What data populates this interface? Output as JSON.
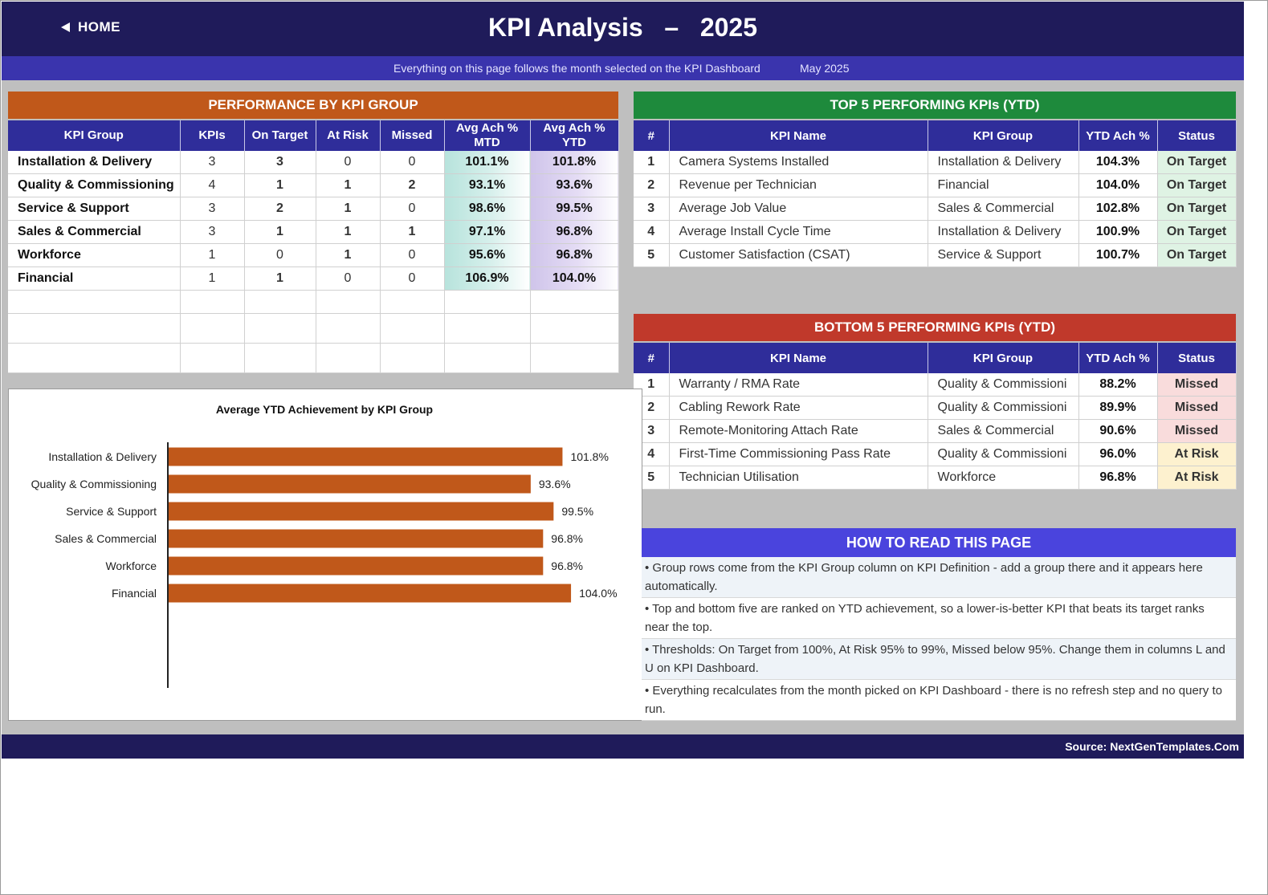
{
  "header": {
    "home_label": "HOME",
    "title": "KPI Analysis   –   2025",
    "subtitle": "Everything on this page follows the month selected on the KPI Dashboard",
    "month": "May 2025"
  },
  "colors": {
    "navy": "#1f1b5a",
    "subbar": "#3a34ad",
    "table_header": "#2f2d9a",
    "orange": "#c0581a",
    "green": "#1e8a3c",
    "red": "#c0392b",
    "how_header": "#4a44dd",
    "bar": "#c0581a"
  },
  "performance": {
    "title": "PERFORMANCE BY KPI GROUP",
    "columns": [
      "KPI Group",
      "KPIs",
      "On Target",
      "At Risk",
      "Missed",
      "Avg Ach % MTD",
      "Avg Ach % YTD"
    ],
    "rows": [
      {
        "group": "Installation & Delivery",
        "kpis": "3",
        "on_target": "3",
        "at_risk": "0",
        "missed": "0",
        "mtd": "101.1%",
        "ytd": "101.8%"
      },
      {
        "group": "Quality & Commissioning",
        "kpis": "4",
        "on_target": "1",
        "at_risk": "1",
        "missed": "2",
        "mtd": "93.1%",
        "ytd": "93.6%"
      },
      {
        "group": "Service & Support",
        "kpis": "3",
        "on_target": "2",
        "at_risk": "1",
        "missed": "0",
        "mtd": "98.6%",
        "ytd": "99.5%"
      },
      {
        "group": "Sales & Commercial",
        "kpis": "3",
        "on_target": "1",
        "at_risk": "1",
        "missed": "1",
        "mtd": "97.1%",
        "ytd": "96.8%"
      },
      {
        "group": "Workforce",
        "kpis": "1",
        "on_target": "0",
        "at_risk": "1",
        "missed": "0",
        "mtd": "95.6%",
        "ytd": "96.8%"
      },
      {
        "group": "Financial",
        "kpis": "1",
        "on_target": "1",
        "at_risk": "0",
        "missed": "0",
        "mtd": "106.9%",
        "ytd": "104.0%"
      }
    ]
  },
  "top5": {
    "title": "TOP 5 PERFORMING KPIs  (YTD)",
    "columns": [
      "#",
      "KPI Name",
      "KPI Group",
      "YTD Ach %",
      "Status"
    ],
    "rows": [
      {
        "rank": "1",
        "name": "Camera Systems Installed",
        "group": "Installation & Delivery",
        "ytd": "104.3%",
        "status": "On Target"
      },
      {
        "rank": "2",
        "name": "Revenue per Technician",
        "group": "Financial",
        "ytd": "104.0%",
        "status": "On Target"
      },
      {
        "rank": "3",
        "name": "Average Job Value",
        "group": "Sales & Commercial",
        "ytd": "102.8%",
        "status": "On Target"
      },
      {
        "rank": "4",
        "name": "Average Install Cycle Time",
        "group": "Installation & Delivery",
        "ytd": "100.9%",
        "status": "On Target"
      },
      {
        "rank": "5",
        "name": "Customer Satisfaction (CSAT)",
        "group": "Service & Support",
        "ytd": "100.7%",
        "status": "On Target"
      }
    ]
  },
  "bottom5": {
    "title": "BOTTOM 5 PERFORMING KPIs  (YTD)",
    "columns": [
      "#",
      "KPI Name",
      "KPI Group",
      "YTD Ach %",
      "Status"
    ],
    "rows": [
      {
        "rank": "1",
        "name": "Warranty / RMA Rate",
        "group": "Quality & Commissioni",
        "ytd": "88.2%",
        "status": "Missed"
      },
      {
        "rank": "2",
        "name": "Cabling Rework Rate",
        "group": "Quality & Commissioni",
        "ytd": "89.9%",
        "status": "Missed"
      },
      {
        "rank": "3",
        "name": "Remote-Monitoring Attach Rate",
        "group": "Sales & Commercial",
        "ytd": "90.6%",
        "status": "Missed"
      },
      {
        "rank": "4",
        "name": "First-Time Commissioning Pass Rate",
        "group": "Quality & Commissioni",
        "ytd": "96.0%",
        "status": "At Risk"
      },
      {
        "rank": "5",
        "name": "Technician Utilisation",
        "group": "Workforce",
        "ytd": "96.8%",
        "status": "At Risk"
      }
    ]
  },
  "chart_data": {
    "type": "bar",
    "orientation": "horizontal",
    "title": "Average YTD Achievement by KPI Group",
    "categories": [
      "Installation & Delivery",
      "Quality & Commissioning",
      "Service & Support",
      "Sales & Commercial",
      "Workforce",
      "Financial"
    ],
    "values": [
      101.8,
      93.6,
      99.5,
      96.8,
      96.8,
      104.0
    ],
    "value_labels": [
      "101.8%",
      "93.6%",
      "99.5%",
      "96.8%",
      "96.8%",
      "104.0%"
    ],
    "xlim": [
      0,
      116
    ],
    "grid": false,
    "legend": "none"
  },
  "howto": {
    "title": "HOW TO READ THIS PAGE",
    "items": [
      "•  Group rows come from the KPI Group column on KPI Definition - add a group there and it appears here automatically.",
      "•  Top and bottom five are ranked on YTD achievement, so a lower-is-better KPI that beats its target ranks near the top.",
      "•  Thresholds: On Target from 100%, At Risk 95% to 99%, Missed below 95%. Change them in columns L and U on KPI Dashboard.",
      "•  Everything recalculates from the month picked on KPI Dashboard - there is no refresh step and no query to run."
    ]
  },
  "footer": {
    "source": "Source: NextGenTemplates.Com"
  }
}
